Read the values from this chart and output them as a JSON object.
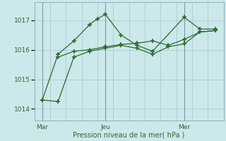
{
  "background_color": "#cce8ea",
  "grid_color": "#b0cfd4",
  "line_color": "#2d6a2d",
  "xlabel": "Pression niveau de la mer( hPa )",
  "ylim": [
    1013.6,
    1017.6
  ],
  "yticks": [
    1014,
    1015,
    1016,
    1017
  ],
  "xlim": [
    0,
    12
  ],
  "xtick_positions": [
    0.5,
    4.5,
    9.5
  ],
  "xtick_labels": [
    "Mar",
    "Jeu",
    "Mer"
  ],
  "vline_positions": [
    0.5,
    4.5,
    9.5
  ],
  "line1_x": [
    0.5,
    1.5,
    2.5,
    3.5,
    4.0,
    4.5,
    5.5,
    6.5,
    7.5,
    9.5,
    10.5,
    11.5
  ],
  "line1_y": [
    1014.3,
    1015.85,
    1016.3,
    1016.85,
    1017.05,
    1017.2,
    1016.5,
    1016.15,
    1015.95,
    1017.1,
    1016.7,
    1016.7
  ],
  "line2_x": [
    0.5,
    1.5,
    2.5,
    3.5,
    4.5,
    5.5,
    6.5,
    7.5,
    8.5,
    9.5,
    10.5,
    11.5
  ],
  "line2_y": [
    1014.3,
    1014.25,
    1015.75,
    1015.95,
    1016.05,
    1016.15,
    1016.05,
    1015.85,
    1016.1,
    1016.2,
    1016.6,
    1016.65
  ],
  "line3_x": [
    1.5,
    2.5,
    3.5,
    4.5,
    5.5,
    6.5,
    7.5,
    8.5,
    9.5,
    10.5,
    11.5
  ],
  "line3_y": [
    1015.75,
    1015.95,
    1016.0,
    1016.1,
    1016.18,
    1016.22,
    1016.3,
    1016.15,
    1016.35,
    1016.6,
    1016.65
  ]
}
